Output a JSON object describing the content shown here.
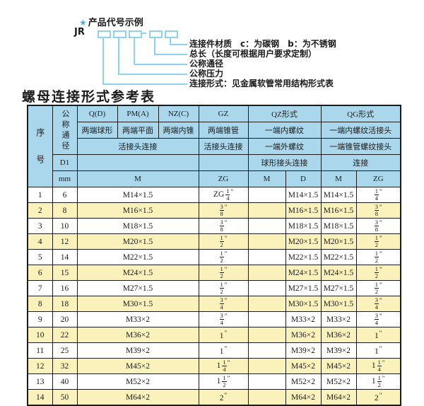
{
  "diagram": {
    "star_icon": "★",
    "title": "产品代号示例",
    "prefix": "JR",
    "labels": [
      "连接件材质　c：为碳钢　b：为不锈钢",
      "总长（长度可根据用户要求定制）",
      "公称通径",
      "公称压力",
      "连接形式：见金属软管常用结构形式表"
    ]
  },
  "table": {
    "title": "螺母连接形式参考表",
    "header": {
      "seq": "序号",
      "dn": "公称通径",
      "d1": "D1",
      "mm": "mm",
      "q": "Q(D)",
      "q_desc": "两端球形",
      "pm": "PM(A)",
      "pm_desc": "两端平面",
      "nz": "NZ(C)",
      "nz_desc": "两端内锥",
      "gz": "GZ",
      "gz_desc": "两端锥管",
      "gz_row3": "活接头连接",
      "gz_unit": "ZG",
      "qpn_row3": "活接头连接",
      "qpn_unit": "M",
      "qz": "QZ形式",
      "qz_desc": "一端内螺纹",
      "qz_row3": "一端外螺纹",
      "qz_row4": "球形接头连接",
      "qz_unit_m": "M",
      "qz_unit_d": "D",
      "qg": "QG形式",
      "qg_desc": "一端内螺纹活接头",
      "qg_row3": "一端锥管螺纹接头",
      "qg_row4": "连接",
      "qg_unit_m": "M",
      "qg_unit_zg": "ZG"
    },
    "rows": [
      {
        "seq": "1",
        "dn": "6",
        "m": "M14×1.5",
        "gz": "ZG 1/4\"",
        "qz_m": "",
        "qz_d": "M14×1.5",
        "qg_m": "M14×1.5",
        "qg_zg": "1/4\""
      },
      {
        "seq": "2",
        "dn": "8",
        "m": "M16×1.5",
        "gz": "3/8\"",
        "qz_m": "",
        "qz_d": "M16×1.5",
        "qg_m": "M16×1.5",
        "qg_zg": "3/8\""
      },
      {
        "seq": "3",
        "dn": "10",
        "m": "M18×1.5",
        "gz": "3/8\"",
        "qz_m": "",
        "qz_d": "M18×1.5",
        "qg_m": "M18×1.5",
        "qg_zg": "3/8\""
      },
      {
        "seq": "4",
        "dn": "12",
        "m": "M20×1.5",
        "gz": "1/2\"",
        "qz_m": "",
        "qz_d": "M20×1.5",
        "qg_m": "M20×1.5",
        "qg_zg": "1/2\""
      },
      {
        "seq": "5",
        "dn": "14",
        "m": "M22×1.5",
        "gz": "1/2\"",
        "qz_m": "",
        "qz_d": "M22×1.5",
        "qg_m": "M22×1.5",
        "qg_zg": "1/2\""
      },
      {
        "seq": "6",
        "dn": "15",
        "m": "M24×1.5",
        "gz": "1/2\"",
        "qz_m": "",
        "qz_d": "M24×1.5",
        "qg_m": "M24×1.5",
        "qg_zg": "1/2\""
      },
      {
        "seq": "7",
        "dn": "16",
        "m": "M27×1.5",
        "gz": "1/2\"",
        "qz_m": "",
        "qz_d": "M27×1.5",
        "qg_m": "M27×1.5",
        "qg_zg": "1/2\""
      },
      {
        "seq": "8",
        "dn": "18",
        "m": "M30×1.5",
        "gz": "3/4\"",
        "qz_m": "",
        "qz_d": "M30×1.5",
        "qg_m": "M30×1.5",
        "qg_zg": "3/4\""
      },
      {
        "seq": "9",
        "dn": "20",
        "m": "M33×2",
        "gz": "3/4\"",
        "qz_m": "",
        "qz_d": "M33×2",
        "qg_m": "M33×2",
        "qg_zg": "3/4\""
      },
      {
        "seq": "10",
        "dn": "22",
        "m": "M36×2",
        "gz": "1\"",
        "qz_m": "",
        "qz_d": "M36×2",
        "qg_m": "M36×2",
        "qg_zg": "1\""
      },
      {
        "seq": "11",
        "dn": "25",
        "m": "M39×2",
        "gz": "1\"",
        "qz_m": "",
        "qz_d": "M39×2",
        "qg_m": "M39×2",
        "qg_zg": "1\""
      },
      {
        "seq": "12",
        "dn": "32",
        "m": "M45×2",
        "gz": "1 1/4\"",
        "qz_m": "",
        "qz_d": "M45×2",
        "qg_m": "M45×2",
        "qg_zg": "1 1/4\""
      },
      {
        "seq": "13",
        "dn": "40",
        "m": "M52×2",
        "gz": "1 1/2\"",
        "qz_m": "",
        "qz_d": "M52×2",
        "qg_m": "M52×2",
        "qg_zg": "1 1/2\""
      },
      {
        "seq": "14",
        "dn": "50",
        "m": "M64×2",
        "gz": "2\"",
        "qz_m": "",
        "qz_d": "M64×2",
        "qg_m": "M64×2",
        "qg_zg": "2\""
      }
    ],
    "colors": {
      "header_bg": "#abd7ec",
      "stripe_bg": "#fbf2bb",
      "diagram_line": "#8fd2ee",
      "star": "#3fb3e3"
    }
  }
}
